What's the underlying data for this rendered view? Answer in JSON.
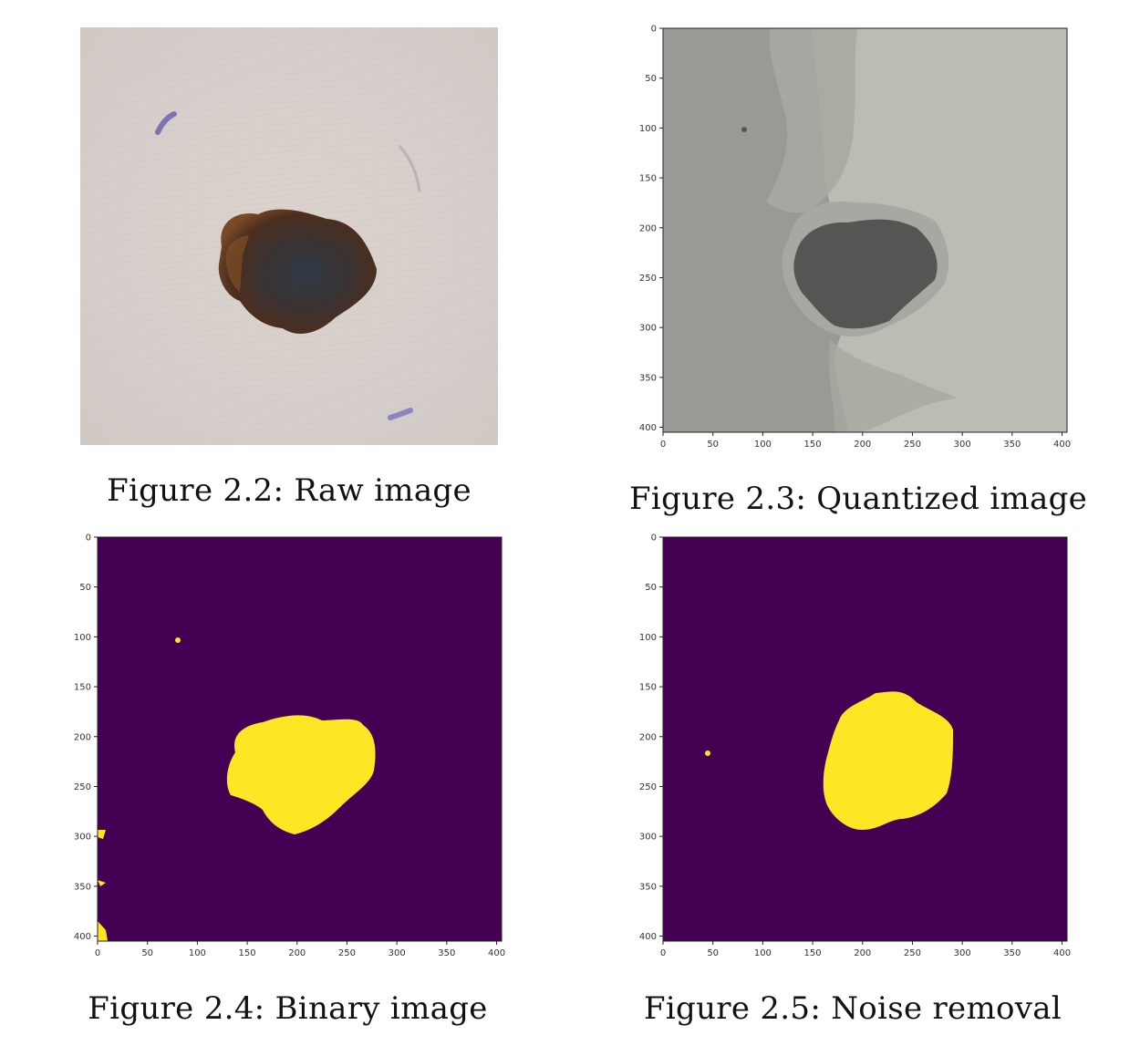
{
  "figures": [
    {
      "id": "2.2",
      "caption": "Figure 2.2: Raw image",
      "kind": "photo"
    },
    {
      "id": "2.3",
      "caption": "Figure 2.3: Quantized image",
      "kind": "plot"
    },
    {
      "id": "2.4",
      "caption": "Figure 2.4: Binary image",
      "kind": "plot"
    },
    {
      "id": "2.5",
      "caption": "Figure 2.5: Noise removal",
      "kind": "plot"
    }
  ],
  "axes": {
    "x_ticks": [
      "0",
      "50",
      "100",
      "150",
      "200",
      "250",
      "300",
      "350",
      "400"
    ],
    "y_ticks": [
      "0",
      "50",
      "100",
      "150",
      "200",
      "250",
      "300",
      "350",
      "400"
    ],
    "range": [
      0,
      405
    ]
  },
  "colors": {
    "viridis_low": "#440154",
    "viridis_high": "#fde725",
    "quant_dark": "#555553",
    "quant_mid": "#a8a7a1",
    "quant_light": "#bdbcb4",
    "quant_bg": "#999995"
  }
}
